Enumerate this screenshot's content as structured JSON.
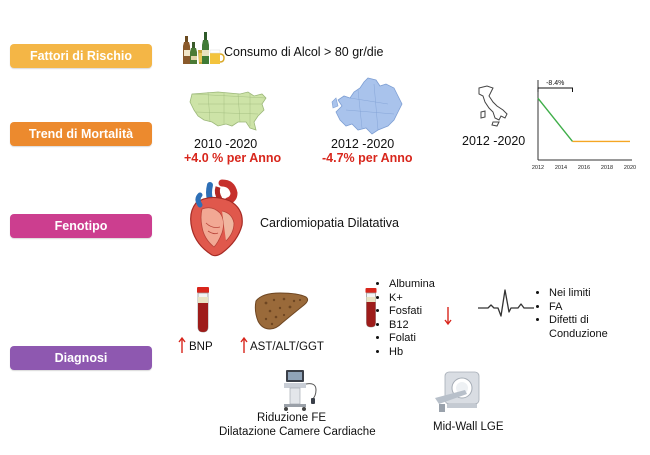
{
  "categories": {
    "risk": {
      "label": "Fattori di Rischio",
      "color": "#f4b646"
    },
    "trend": {
      "label": "Trend di Mortalità",
      "color": "#ec8a2e"
    },
    "phenotype": {
      "label": "Fenotipo",
      "color": "#cc3e8f"
    },
    "diagnosis": {
      "label": "Diagnosi",
      "color": "#8e58b0"
    }
  },
  "risk": {
    "text": "Consumo di Alcol > 80 gr/die",
    "icon": "alcohol-bottles-icon"
  },
  "trend": {
    "usa": {
      "period": "2010 -2020",
      "change": "+4.0 % per Anno",
      "icon": "usa-map-icon"
    },
    "europe": {
      "period": "2012 -2020",
      "change": "-4.7% per Anno",
      "icon": "europe-map-icon"
    },
    "italy": {
      "period": "2012 -2020",
      "icon": "italy-map-icon"
    }
  },
  "phenotype": {
    "text": "Cardiomiopatia Dilatativa",
    "icon": "heart-icon"
  },
  "diagnosis": {
    "bnp": {
      "label": "BNP",
      "direction": "up",
      "icon": "blood-tube-icon"
    },
    "liver": {
      "label": "AST/ALT/GGT",
      "direction": "up",
      "icon": "liver-icon"
    },
    "lab_list": {
      "items": [
        "Albumina",
        "K+",
        "Fosfati",
        "B12",
        "Folati",
        "Hb"
      ],
      "direction": "down",
      "icon": "blood-tube-icon"
    },
    "ecg": {
      "items": [
        "Nei limiti",
        "FA",
        "Difetti di Conduzione"
      ],
      "icon": "ecg-icon"
    },
    "echo": {
      "line1": "Riduzione FE",
      "line2": "Dilatazione Camere Cardiache",
      "icon": "ultrasound-machine-icon"
    },
    "mri": {
      "label": "Mid-Wall LGE",
      "icon": "mri-scanner-icon"
    }
  },
  "chart_data": {
    "type": "line",
    "title": "",
    "xlabel": "",
    "ylabel": "",
    "x_ticks": [
      "2012",
      "2014",
      "2016",
      "2018",
      "2020"
    ],
    "series": [
      {
        "x": [
          2012,
          2015
        ],
        "y": [
          100,
          91.6
        ],
        "color": "#3fae49"
      },
      {
        "x": [
          2015,
          2020
        ],
        "y": [
          91.6,
          91.6
        ],
        "color": "#f5a623"
      }
    ],
    "annotation": "-8.4%",
    "xlim": [
      2012,
      2020
    ],
    "ylim": [
      88,
      102
    ]
  }
}
